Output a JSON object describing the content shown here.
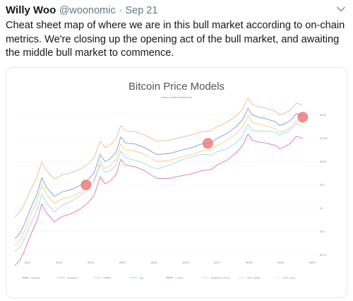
{
  "tweet": {
    "author_name": "Willy Woo",
    "handle": "@woonomic",
    "separator": "·",
    "date": "Sep 21",
    "text": "Cheat sheet map of where we are in this bull market according to on-chain metrics. We're closing up the opening act of the bull market, and awaiting the middle bull market to commence."
  },
  "icons": {
    "more": "chevron-down-icon"
  },
  "colors": {
    "text": "#14171a",
    "muted": "#657786",
    "border": "#e1e8ed",
    "highlight": "#f07c7c"
  },
  "chart_data": {
    "type": "line",
    "title": "Bitcoin Price Models",
    "subtitle": "source: charts.woobull.com",
    "x_ticks": [
      "2011",
      "2012",
      "2013",
      "2014",
      "2015",
      "2016",
      "2017",
      "2018",
      "2019",
      "2020"
    ],
    "y_ticks": [
      "$10K",
      "$1000",
      "$100",
      "$10",
      "$1",
      "$0.1",
      "$0.01"
    ],
    "y_scale": "log",
    "legend_position": "bottom",
    "series": [
      {
        "name": "Market",
        "color": "#6fa0d8"
      },
      {
        "name": "Realised",
        "color": "#f0b07a"
      },
      {
        "name": "VWAP",
        "color": "#f5c96f"
      },
      {
        "name": "Top",
        "color": "#8fd3f0"
      },
      {
        "name": "CVDD",
        "color": "#e060b0"
      },
      {
        "name": "Balanced Price",
        "color": "#c9e6a5"
      },
      {
        "name": "NVT (30d)",
        "color": "#f8dcc0"
      },
      {
        "name": "NVT (3.0)",
        "color": "#f0e0ef"
      }
    ],
    "highlights": [
      {
        "x": "2012.85",
        "y": "$10"
      },
      {
        "x": "2016.7",
        "y": "$600"
      },
      {
        "x": "2019.7",
        "y": "$8000"
      }
    ]
  }
}
